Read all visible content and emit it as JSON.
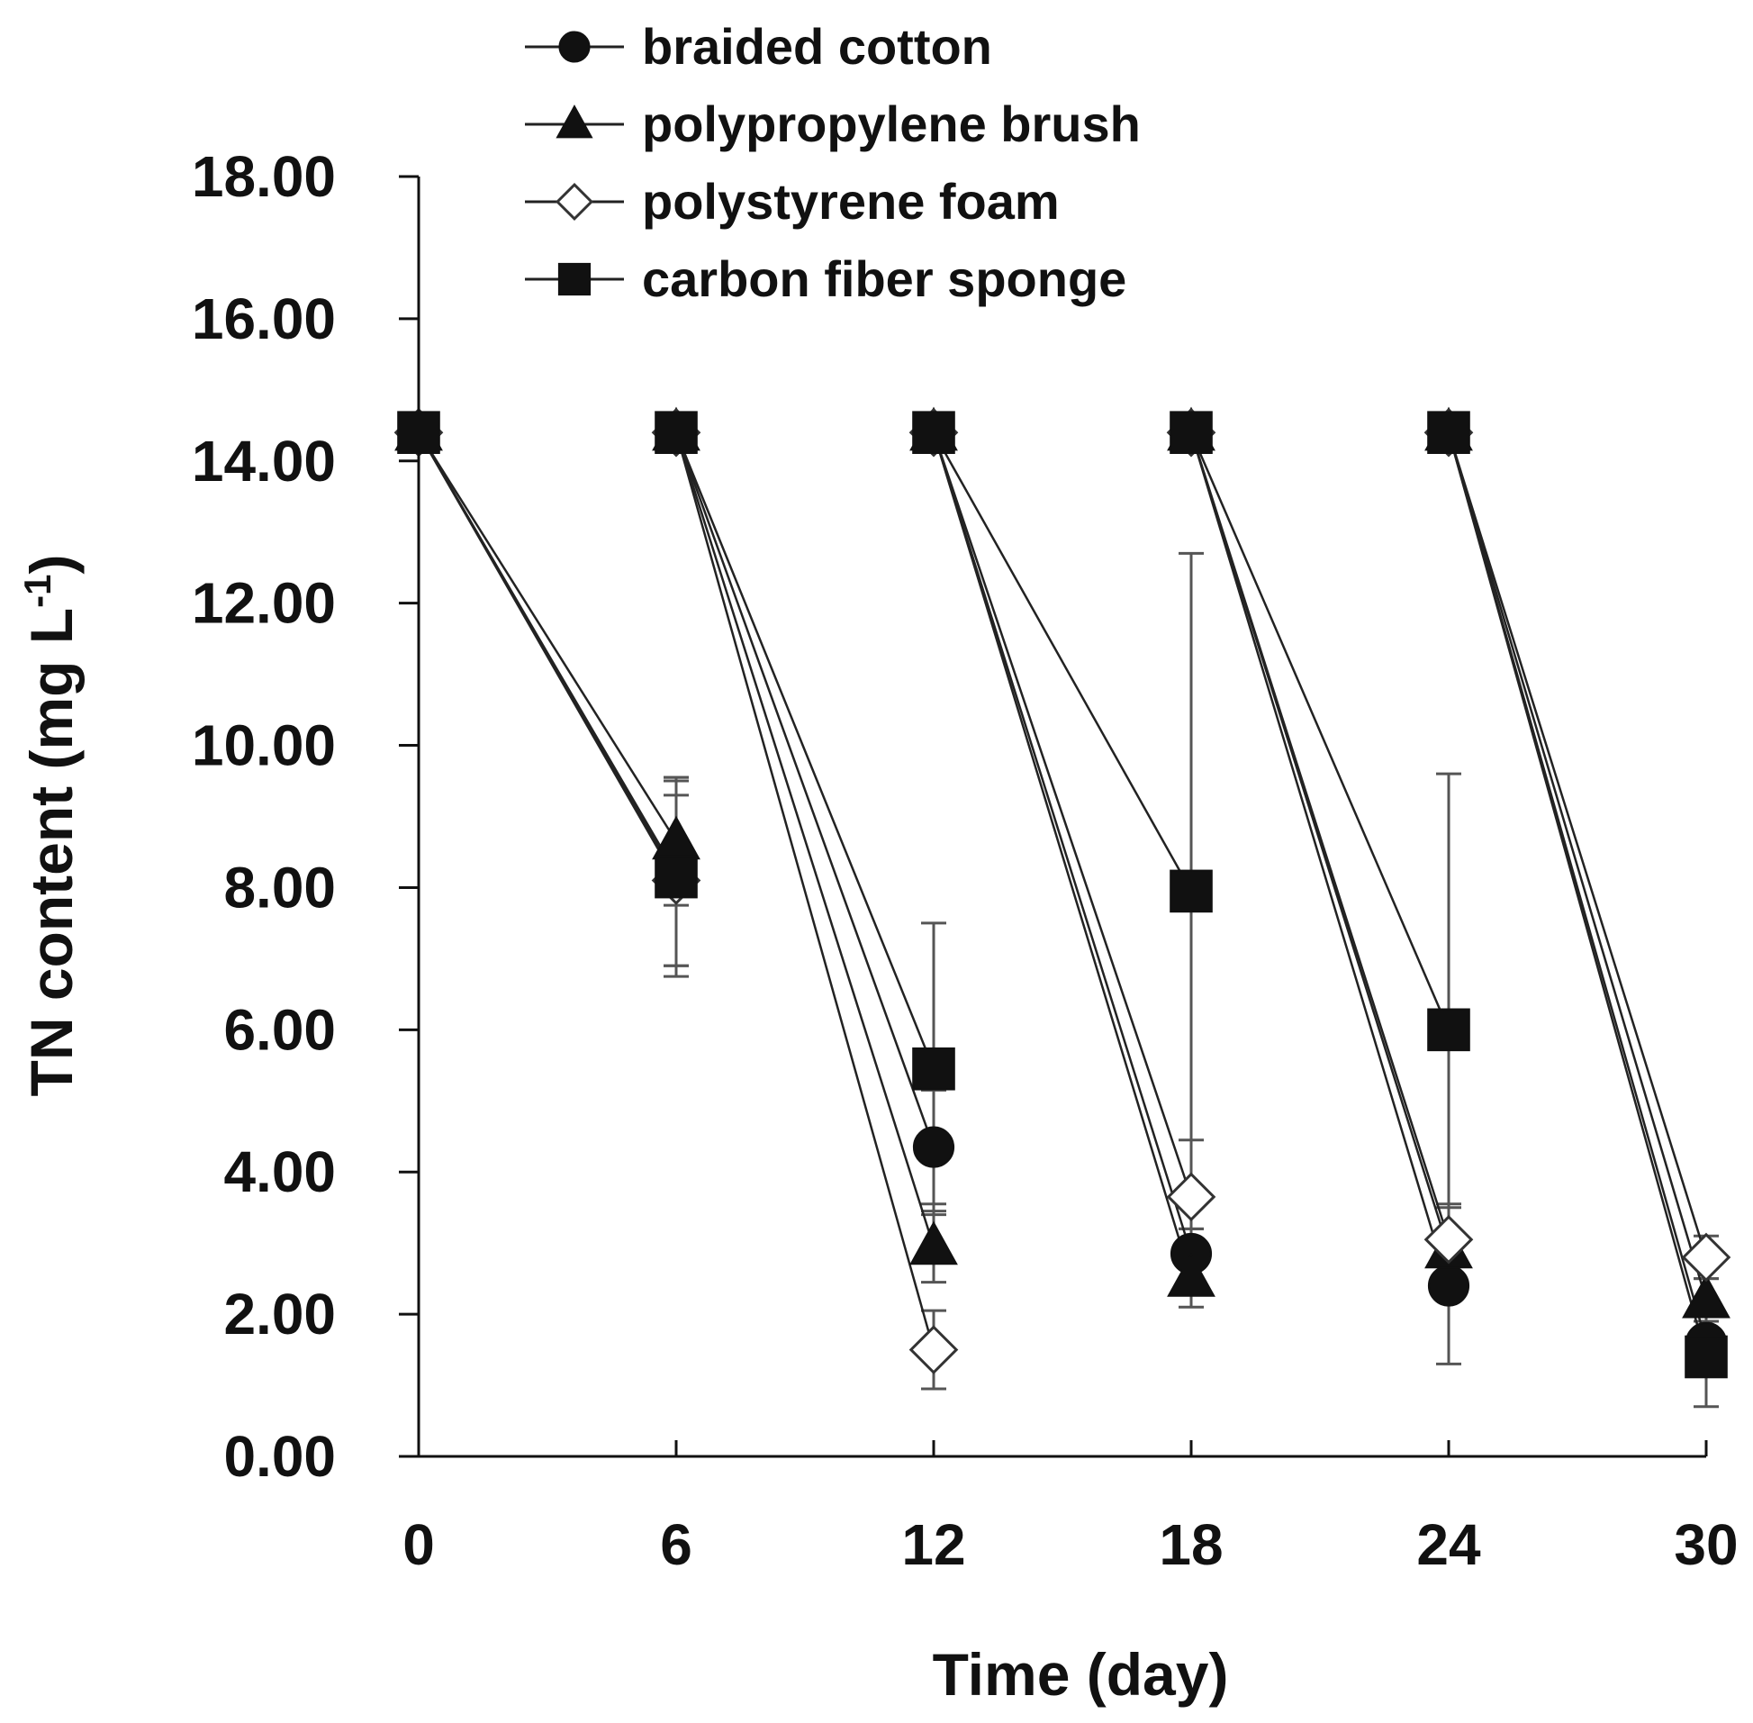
{
  "chart_data": {
    "type": "line",
    "xlabel": "Time (day)",
    "ylabel_main": "TN content (mg L",
    "ylabel_sup": "-1",
    "ylabel_close": ")",
    "xlim": [
      0,
      30
    ],
    "ylim": [
      0,
      18
    ],
    "xticks": [
      "0",
      "6",
      "12",
      "18",
      "24",
      "30"
    ],
    "xtick_values": [
      0,
      6,
      12,
      18,
      24,
      30
    ],
    "yticks": [
      "0.00",
      "2.00",
      "4.00",
      "6.00",
      "8.00",
      "10.00",
      "12.00",
      "14.00",
      "16.00",
      "18.00"
    ],
    "ytick_values": [
      0,
      2,
      4,
      6,
      8,
      10,
      12,
      14,
      16,
      18
    ],
    "grid": false,
    "legend_position": "top",
    "initial_value": 14.4,
    "segments": [
      [
        0,
        6
      ],
      [
        6,
        12
      ],
      [
        12,
        18
      ],
      [
        18,
        24
      ],
      [
        24,
        30
      ]
    ],
    "series": [
      {
        "name": "braided cotton",
        "marker": "circle",
        "points": [
          {
            "x": 0,
            "y": 14.4
          },
          {
            "x": 6,
            "y": 8.2,
            "err": 1.3
          },
          {
            "x": 6,
            "y": 14.4
          },
          {
            "x": 12,
            "y": 4.35,
            "err": 0.8
          },
          {
            "x": 12,
            "y": 14.4
          },
          {
            "x": 18,
            "y": 2.85,
            "err": 0.35
          },
          {
            "x": 18,
            "y": 14.4
          },
          {
            "x": 24,
            "y": 2.4,
            "err": 1.1
          },
          {
            "x": 24,
            "y": 14.4
          },
          {
            "x": 30,
            "y": 1.6,
            "err": 0.4
          }
        ]
      },
      {
        "name": "polypropylene brush",
        "marker": "triangle",
        "points": [
          {
            "x": 0,
            "y": 14.4
          },
          {
            "x": 6,
            "y": 8.65,
            "err": 0.9
          },
          {
            "x": 6,
            "y": 14.4
          },
          {
            "x": 12,
            "y": 2.95,
            "err": 0.5
          },
          {
            "x": 12,
            "y": 14.4
          },
          {
            "x": 18,
            "y": 2.5,
            "err": 0.4
          },
          {
            "x": 18,
            "y": 14.4
          },
          {
            "x": 24,
            "y": 2.9,
            "err": 0.3
          },
          {
            "x": 24,
            "y": 14.4
          },
          {
            "x": 30,
            "y": 2.2,
            "err": 0.3
          }
        ]
      },
      {
        "name": "polystyrene foam",
        "marker": "diamond-open",
        "points": [
          {
            "x": 0,
            "y": 14.4
          },
          {
            "x": 6,
            "y": 8.1,
            "err": 1.2
          },
          {
            "x": 6,
            "y": 14.4
          },
          {
            "x": 12,
            "y": 1.5,
            "err": 0.55
          },
          {
            "x": 12,
            "y": 14.4
          },
          {
            "x": 18,
            "y": 3.65,
            "err": 0.8
          },
          {
            "x": 18,
            "y": 14.4
          },
          {
            "x": 24,
            "y": 3.05,
            "err": 0.5
          },
          {
            "x": 24,
            "y": 14.4
          },
          {
            "x": 30,
            "y": 2.8,
            "err": 0.3
          }
        ]
      },
      {
        "name": "carbon fiber sponge",
        "marker": "square",
        "points": [
          {
            "x": 0,
            "y": 14.4
          },
          {
            "x": 6,
            "y": 8.15,
            "err": 1.4
          },
          {
            "x": 6,
            "y": 14.4
          },
          {
            "x": 12,
            "y": 5.45,
            "err": 2.05
          },
          {
            "x": 12,
            "y": 14.4
          },
          {
            "x": 18,
            "y": 7.95,
            "err": 4.75
          },
          {
            "x": 18,
            "y": 14.4
          },
          {
            "x": 24,
            "y": 6.0,
            "err": 3.6
          },
          {
            "x": 24,
            "y": 14.4
          },
          {
            "x": 30,
            "y": 1.4,
            "err": 0.7
          }
        ]
      }
    ]
  }
}
